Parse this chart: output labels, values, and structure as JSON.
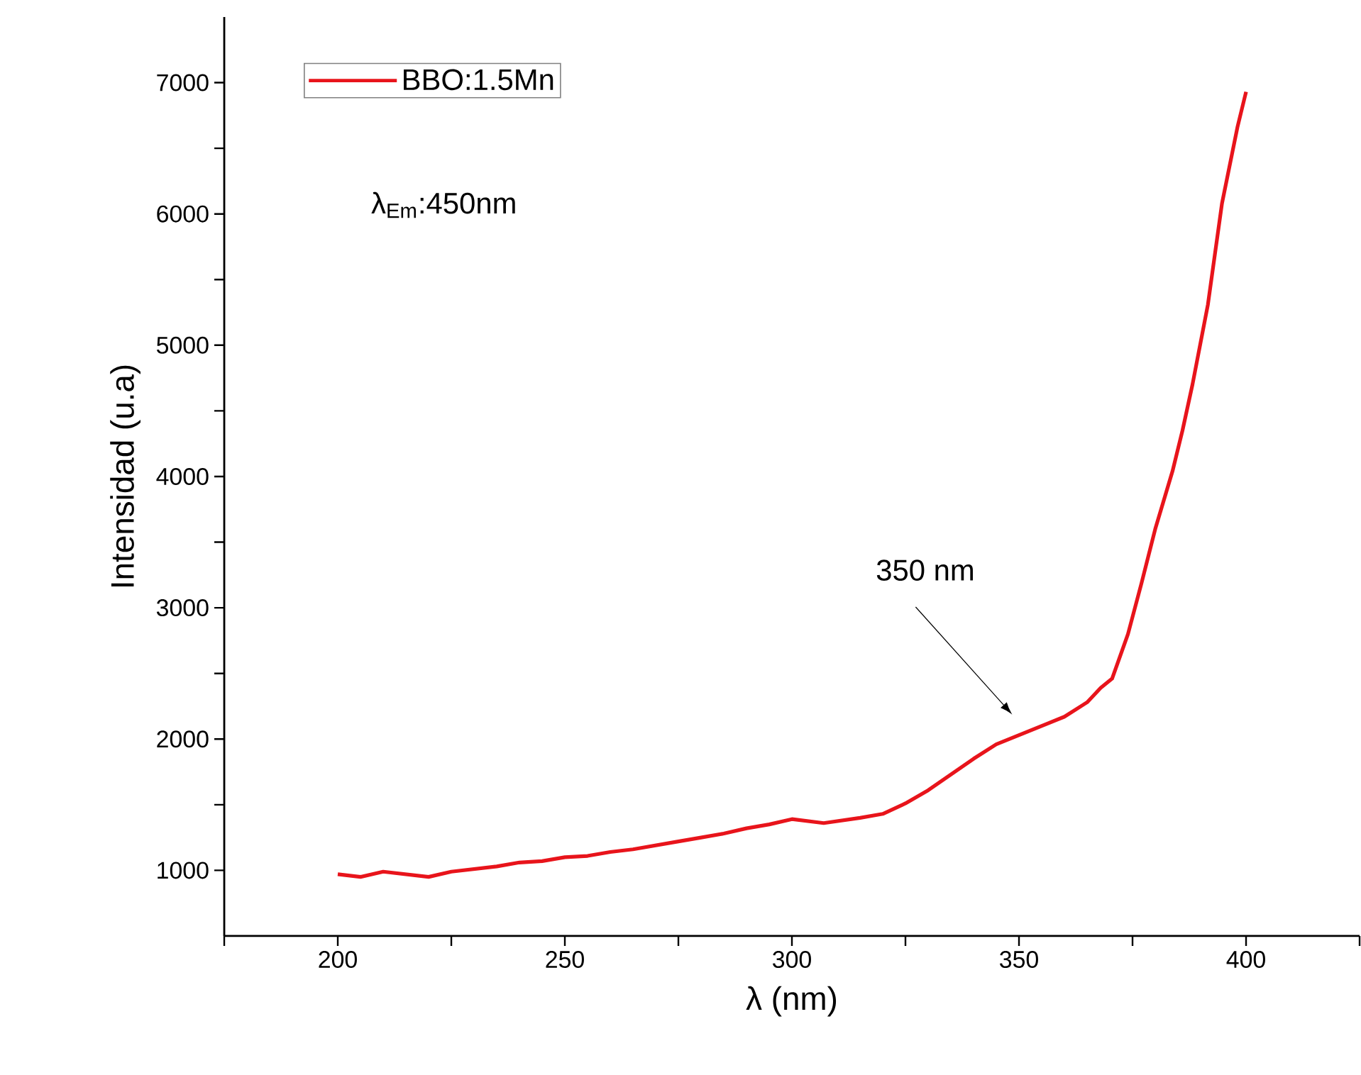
{
  "chart_data": {
    "type": "line",
    "xlabel": "λ (nm)",
    "ylabel": "Intensidad (u.a)",
    "xlim": [
      175,
      425
    ],
    "ylim": [
      500,
      7500
    ],
    "xticks": [
      {
        "value": 175,
        "label": null
      },
      200,
      {
        "value": 225,
        "label": null
      },
      250,
      {
        "value": 275,
        "label": null
      },
      300,
      {
        "value": 325,
        "label": null
      },
      350,
      {
        "value": 375,
        "label": null
      },
      400,
      {
        "value": 425,
        "label": null
      }
    ],
    "yticks": [
      1000,
      {
        "value": 1500,
        "label": null
      },
      2000,
      {
        "value": 2500,
        "label": null
      },
      3000,
      {
        "value": 3500,
        "label": null
      },
      4000,
      {
        "value": 4500,
        "label": null
      },
      5000,
      {
        "value": 5500,
        "label": null
      },
      6000,
      {
        "value": 6500,
        "label": null
      },
      7000
    ],
    "legend": "top left",
    "marker": "none",
    "line_style": "solid",
    "grid": false,
    "annotations": [
      "350 nm",
      "λ$_{Em}$:450nm"
    ],
    "series": [
      {
        "name": "BBO:1.5Mn",
        "color": "#e8141b",
        "x": [
          200,
          205,
          210,
          215,
          220,
          225,
          230,
          235,
          240,
          245,
          250,
          255,
          260,
          265,
          270,
          275,
          280,
          285,
          290,
          295,
          300,
          307,
          315,
          320,
          325,
          330,
          335,
          340,
          345,
          350,
          355,
          360,
          365,
          368,
          370.5,
          374,
          377,
          380,
          383.8,
          386,
          388.2,
          391.6,
          394.7,
          398.1,
          400
        ],
        "values": [
          970,
          950,
          990,
          970,
          950,
          990,
          1010,
          1030,
          1060,
          1070,
          1100,
          1110,
          1140,
          1160,
          1190,
          1220,
          1250,
          1280,
          1320,
          1350,
          1390,
          1360,
          1400,
          1430,
          1510,
          1610,
          1730,
          1850,
          1960,
          2030,
          2100,
          2170,
          2280,
          2390,
          2460,
          2800,
          3190,
          3600,
          4040,
          4350,
          4700,
          5310,
          6080,
          6660,
          6930
        ]
      }
    ]
  }
}
